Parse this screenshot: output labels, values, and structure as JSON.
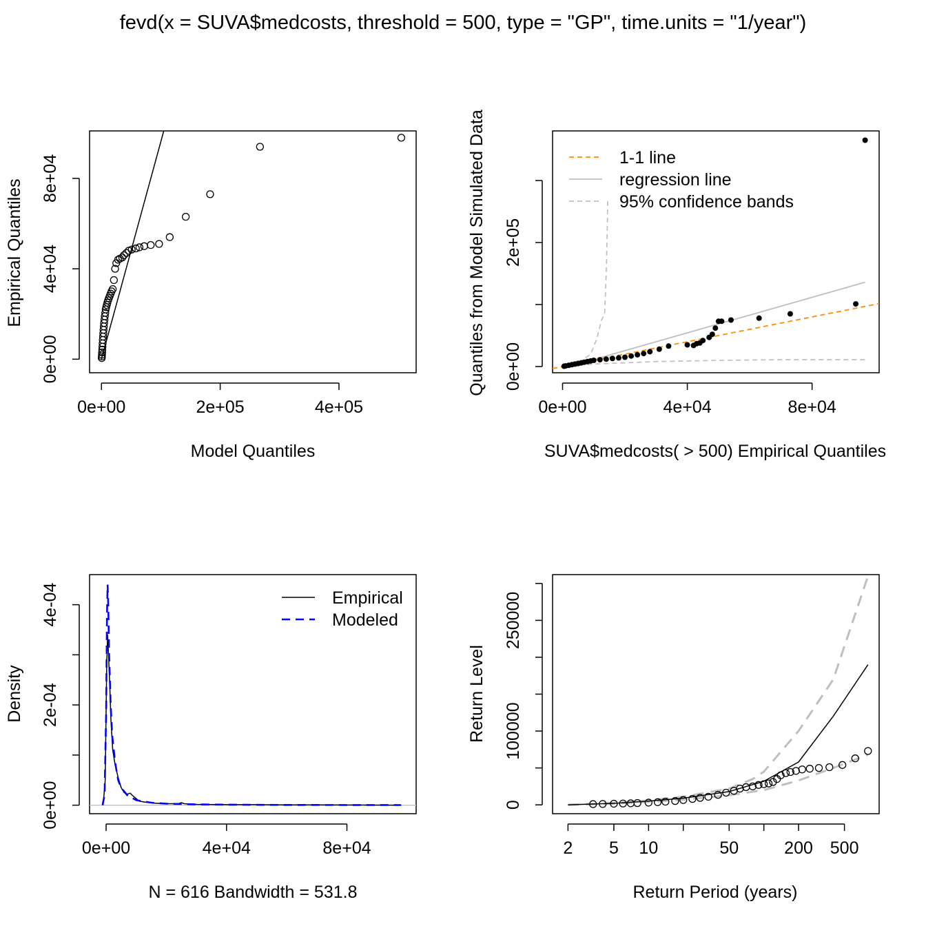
{
  "title": "fevd(x = SUVA$medcosts, threshold = 500, type = \"GP\", time.units = \"1/year\")",
  "chart_data": [
    {
      "id": "qq-model",
      "type": "scatter",
      "xlabel": "Model Quantiles",
      "ylabel": "Empirical Quantiles",
      "xlim": [
        -20000,
        530000
      ],
      "ylim": [
        -6000,
        101000
      ],
      "xticks": [
        0,
        200000,
        400000
      ],
      "xtick_labels": [
        "0e+00",
        "2e+05",
        "4e+05"
      ],
      "yticks": [
        0,
        40000,
        80000
      ],
      "ytick_labels": [
        "0e+00",
        "4e+04",
        "8e+04"
      ],
      "line": {
        "name": "1-1 line",
        "x": [
          0,
          105000
        ],
        "y": [
          0,
          101000
        ]
      },
      "points": {
        "x": [
          500,
          700,
          900,
          1100,
          1400,
          1700,
          2000,
          2300,
          2700,
          3100,
          3500,
          4000,
          4500,
          5100,
          5700,
          6400,
          7200,
          8000,
          9000,
          10000,
          11200,
          12500,
          14000,
          15500,
          17000,
          19000,
          21000,
          23000,
          25000,
          28000,
          31000,
          35000,
          38000,
          42000,
          46000,
          51000,
          58000,
          64000,
          72000,
          83000,
          97000,
          115000,
          142000,
          183000,
          267000,
          505000
        ],
        "y": [
          500,
          1200,
          2000,
          3000,
          4200,
          5500,
          7000,
          8500,
          10000,
          11500,
          13000,
          14500,
          16000,
          17500,
          19000,
          20500,
          22000,
          23000,
          24000,
          25000,
          26000,
          27000,
          28000,
          29000,
          30000,
          31000,
          35000,
          40000,
          42500,
          44000,
          44500,
          45000,
          46000,
          47000,
          48000,
          48500,
          49000,
          49500,
          50000,
          50500,
          51000,
          54000,
          63000,
          73000,
          94000,
          98000
        ]
      }
    },
    {
      "id": "qq-simulated",
      "type": "scatter",
      "xlabel": "SUVA$medcosts( > 500) Empirical Quantiles",
      "ylabel": "Quantiles from Model Simulated Data",
      "xlim": [
        -3200,
        101500
      ],
      "ylim": [
        -10000,
        380000
      ],
      "xticks": [
        0,
        40000,
        80000
      ],
      "xtick_labels": [
        "0e+00",
        "4e+04",
        "8e+04"
      ],
      "yticks": [
        0,
        100000,
        200000,
        300000
      ],
      "ytick_labels": [
        "0e+00",
        "",
        "2e+05",
        ""
      ],
      "legend": {
        "position": "top-left",
        "entries": [
          "1-1 line",
          "regression line",
          "95% confidence bands"
        ]
      },
      "colors": {
        "one_to_one": "#ff8c00",
        "regression": "#bebebe",
        "bands": "#bebebe"
      },
      "one_to_one": {
        "x": [
          -3200,
          101500
        ],
        "y": [
          -3200,
          101500
        ]
      },
      "regression": {
        "x": [
          0,
          97000
        ],
        "y": [
          -3000,
          136000
        ]
      },
      "band_upper": {
        "x": [
          0,
          6000,
          9000,
          11000,
          12500,
          13500,
          14000,
          14300,
          14500
        ],
        "y": [
          0,
          9000,
          20000,
          45000,
          75000,
          85000,
          150000,
          210000,
          270000
        ]
      },
      "band_lower": {
        "x": [
          0,
          10000,
          20000,
          30000,
          50000,
          70000,
          97000
        ],
        "y": [
          0,
          4000,
          6000,
          8000,
          10000,
          11000,
          11000
        ]
      },
      "points": {
        "x": [
          500,
          1000,
          2000,
          3000,
          4000,
          5000,
          6000,
          7000,
          8000,
          9000,
          10000,
          12000,
          14000,
          16000,
          18000,
          20000,
          22000,
          24000,
          26000,
          28000,
          31000,
          34000,
          40000,
          42000,
          43000,
          44000,
          45000,
          47000,
          48000,
          49000,
          50000,
          51000,
          54000,
          63000,
          73000,
          94000,
          97000
        ],
        "y": [
          500,
          1000,
          2000,
          3000,
          4000,
          5000,
          6000,
          7000,
          8000,
          9000,
          10000,
          11000,
          12000,
          13000,
          14000,
          15000,
          17000,
          19000,
          21000,
          24000,
          28000,
          33000,
          35000,
          34000,
          37000,
          38000,
          42000,
          47000,
          52000,
          62000,
          73000,
          73000,
          75000,
          78000,
          85000,
          101000,
          365000
        ]
      }
    },
    {
      "id": "density",
      "type": "line",
      "xlabel": "N = 616   Bandwidth = 531.8",
      "ylabel": "Density",
      "xlim": [
        -5500,
        103000
      ],
      "ylim": [
        -1.7e-05,
        0.00046
      ],
      "xticks": [
        0,
        40000,
        80000
      ],
      "xtick_labels": [
        "0e+00",
        "4e+04",
        "8e+04"
      ],
      "yticks": [
        0,
        0.0001,
        0.0002,
        0.0003,
        0.0004
      ],
      "ytick_labels": [
        "0e+00",
        "",
        "2e-04",
        "",
        "4e-04"
      ],
      "legend": {
        "position": "top-right",
        "entries": [
          "Empirical",
          "Modeled"
        ]
      },
      "colors": {
        "empirical": "#000000",
        "modeled": "#0000ff",
        "zero_line": "#bebebe"
      },
      "series": [
        {
          "name": "Empirical",
          "x": [
            -1000,
            -300,
            200,
            500,
            800,
            1200,
            1600,
            2200,
            3000,
            4000,
            5000,
            6000,
            7000,
            8000,
            9000,
            11000,
            13000,
            16000,
            20000,
            24000,
            25000,
            26000,
            30000,
            40000,
            50000,
            60000,
            70000,
            80000,
            90000,
            98000
          ],
          "y": [
            0,
            5e-05,
            0.00028,
            0.00034,
            0.0003,
            0.00024,
            0.00017,
            0.00011,
            8e-05,
            5.5e-05,
            3.5e-05,
            2.5e-05,
            2.2e-05,
            2.4e-05,
            1.8e-05,
            8e-06,
            6e-06,
            4e-06,
            3e-06,
            3e-06,
            5e-06,
            3e-06,
            1.5e-06,
            1e-06,
            1e-06,
            5e-07,
            5e-07,
            3e-07,
            2e-07,
            1e-07
          ]
        },
        {
          "name": "Modeled",
          "x": [
            -1200,
            -500,
            0,
            300,
            500,
            700,
            1000,
            1500,
            2000,
            3000,
            4000,
            5000,
            7000,
            10000,
            15000,
            20000,
            30000,
            40000,
            60000,
            80000,
            98000
          ],
          "y": [
            0,
            2e-05,
            0.00018,
            0.00038,
            0.00044,
            0.0004,
            0.0003,
            0.0002,
            0.00014,
            8.5e-05,
            5e-05,
            3.5e-05,
            2e-05,
            1e-05,
            5e-06,
            3e-06,
            1.5e-06,
            1e-06,
            5e-07,
            3e-07,
            2e-07
          ]
        }
      ]
    },
    {
      "id": "return-level",
      "type": "line",
      "xlabel": "Return Period (years)",
      "ylabel": "Return Level",
      "x_scale": "log",
      "xlim": [
        1.47,
        1000
      ],
      "ylim": [
        -12000,
        312000
      ],
      "xticks": [
        2,
        5,
        10,
        20,
        50,
        100,
        200,
        500
      ],
      "xtick_labels": [
        "2",
        "5",
        "10",
        "",
        "50",
        "",
        "200",
        "500"
      ],
      "yticks": [
        0,
        50000,
        100000,
        150000,
        200000,
        250000,
        300000
      ],
      "ytick_labels": [
        "0",
        "",
        "100000",
        "",
        "",
        "250000",
        ""
      ],
      "colors": {
        "estimate": "#000000",
        "bands": "#bebebe"
      },
      "estimate": {
        "x": [
          2,
          5,
          10,
          20,
          50,
          100,
          200,
          400,
          800
        ],
        "y": [
          0,
          2000,
          5000,
          9000,
          18000,
          32000,
          58000,
          120000,
          190000
        ]
      },
      "upper_band": {
        "x": [
          2,
          5,
          10,
          20,
          50,
          80,
          100,
          200,
          400,
          800
        ],
        "y": [
          0,
          2500,
          6000,
          11000,
          22000,
          35000,
          45000,
          100000,
          170000,
          310000
        ]
      },
      "lower_band": {
        "x": [
          2,
          5,
          10,
          20,
          50,
          100,
          200,
          400,
          800
        ],
        "y": [
          0,
          1500,
          4000,
          7000,
          13000,
          20000,
          33000,
          50000,
          68000
        ]
      },
      "points": {
        "x": [
          3.3,
          4,
          5,
          6,
          7,
          8,
          10,
          12,
          14,
          17,
          20,
          24,
          28,
          33,
          40,
          47,
          55,
          62,
          70,
          80,
          90,
          100,
          110,
          120,
          130,
          140,
          155,
          170,
          190,
          215,
          250,
          300,
          370,
          480,
          620,
          800
        ],
        "y": [
          1000,
          1200,
          1500,
          1800,
          2100,
          2400,
          3000,
          3600,
          4300,
          5200,
          6500,
          8000,
          9500,
          11000,
          13500,
          16500,
          19000,
          22000,
          24000,
          25000,
          27000,
          28000,
          29000,
          31000,
          35000,
          40000,
          43000,
          44500,
          46000,
          48000,
          49000,
          50000,
          51000,
          54000,
          63000,
          73000
        ]
      }
    }
  ]
}
